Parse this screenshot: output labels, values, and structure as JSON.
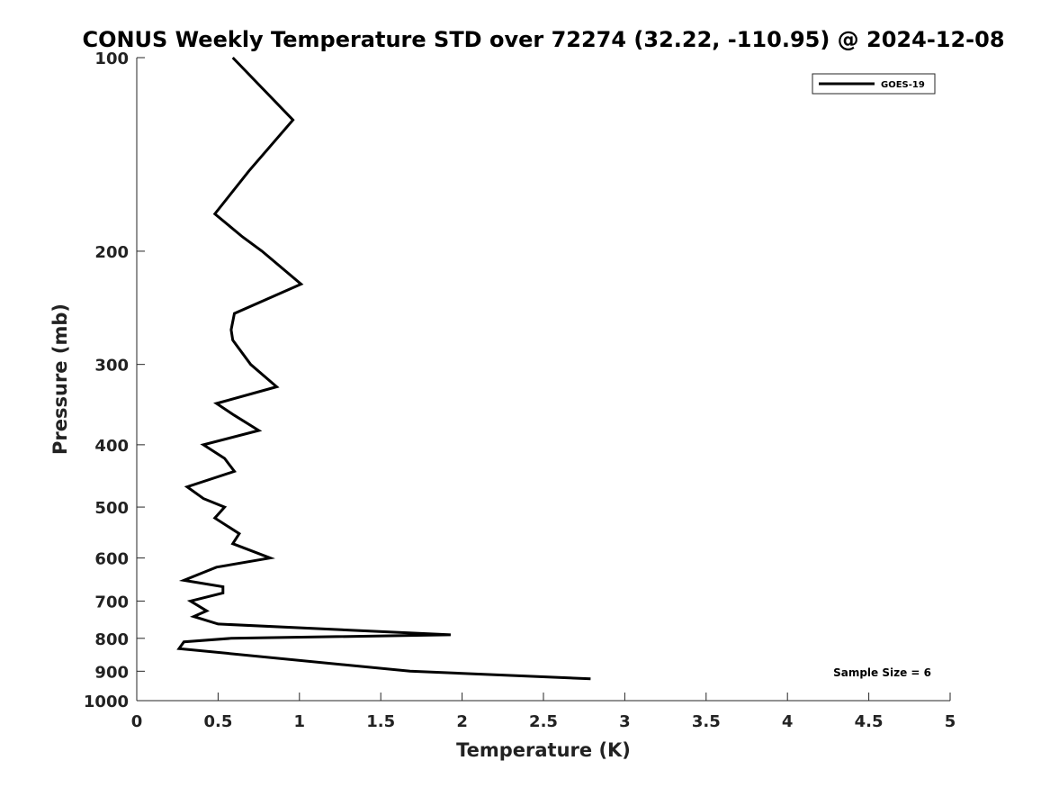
{
  "chart_data": {
    "type": "line",
    "title": "CONUS Weekly Temperature STD over 72274 (32.22, -110.95) @ 2024-12-08",
    "xlabel": "Temperature (K)",
    "ylabel": "Pressure (mb)",
    "xlim": [
      0,
      5
    ],
    "ylim": [
      100,
      1000
    ],
    "y_scale": "log",
    "y_reversed": true,
    "grid": false,
    "legend_position": "top-right",
    "x_ticks": [
      "0",
      "0.5",
      "1",
      "1.5",
      "2",
      "2.5",
      "3",
      "3.5",
      "4",
      "4.5",
      "5"
    ],
    "y_ticks": [
      "100",
      "200",
      "300",
      "400",
      "500",
      "600",
      "700",
      "800",
      "900",
      "1000"
    ],
    "series": [
      {
        "name": "GOES-19",
        "color": "#000000",
        "points": [
          {
            "x": 0.59,
            "p": 100
          },
          {
            "x": 0.96,
            "p": 125
          },
          {
            "x": 0.69,
            "p": 150
          },
          {
            "x": 0.48,
            "p": 175
          },
          {
            "x": 0.65,
            "p": 190
          },
          {
            "x": 0.77,
            "p": 200
          },
          {
            "x": 1.01,
            "p": 225
          },
          {
            "x": 0.6,
            "p": 250
          },
          {
            "x": 0.58,
            "p": 265
          },
          {
            "x": 0.59,
            "p": 275
          },
          {
            "x": 0.7,
            "p": 300
          },
          {
            "x": 0.86,
            "p": 325
          },
          {
            "x": 0.49,
            "p": 345
          },
          {
            "x": 0.6,
            "p": 360
          },
          {
            "x": 0.75,
            "p": 380
          },
          {
            "x": 0.41,
            "p": 400
          },
          {
            "x": 0.54,
            "p": 420
          },
          {
            "x": 0.6,
            "p": 440
          },
          {
            "x": 0.31,
            "p": 465
          },
          {
            "x": 0.41,
            "p": 485
          },
          {
            "x": 0.54,
            "p": 500
          },
          {
            "x": 0.48,
            "p": 520
          },
          {
            "x": 0.63,
            "p": 550
          },
          {
            "x": 0.59,
            "p": 570
          },
          {
            "x": 0.82,
            "p": 600
          },
          {
            "x": 0.49,
            "p": 620
          },
          {
            "x": 0.29,
            "p": 650
          },
          {
            "x": 0.53,
            "p": 665
          },
          {
            "x": 0.53,
            "p": 680
          },
          {
            "x": 0.33,
            "p": 700
          },
          {
            "x": 0.43,
            "p": 725
          },
          {
            "x": 0.35,
            "p": 740
          },
          {
            "x": 0.5,
            "p": 760
          },
          {
            "x": 1.93,
            "p": 790
          },
          {
            "x": 0.58,
            "p": 800
          },
          {
            "x": 0.29,
            "p": 810
          },
          {
            "x": 0.26,
            "p": 830
          },
          {
            "x": 1.68,
            "p": 900
          },
          {
            "x": 2.79,
            "p": 925
          }
        ]
      }
    ],
    "annotation": "Sample Size = 6"
  }
}
